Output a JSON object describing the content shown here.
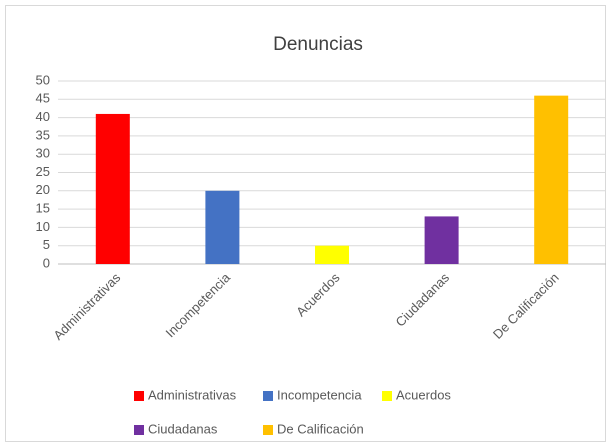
{
  "chart_data": {
    "type": "bar",
    "title": "Denuncias",
    "categories": [
      "Administrativas",
      "Incompetencia",
      "Acuerdos",
      "Ciudadanas",
      "De Calificación"
    ],
    "values": [
      41,
      20,
      5,
      13,
      46
    ],
    "colors": [
      "#ff0000",
      "#4472c4",
      "#ffff00",
      "#7030a0",
      "#ffc000"
    ],
    "ylim": [
      0,
      50
    ],
    "yticks": [
      0,
      5,
      10,
      15,
      20,
      25,
      30,
      35,
      40,
      45,
      50
    ],
    "grid": true,
    "legend": "bottom"
  }
}
